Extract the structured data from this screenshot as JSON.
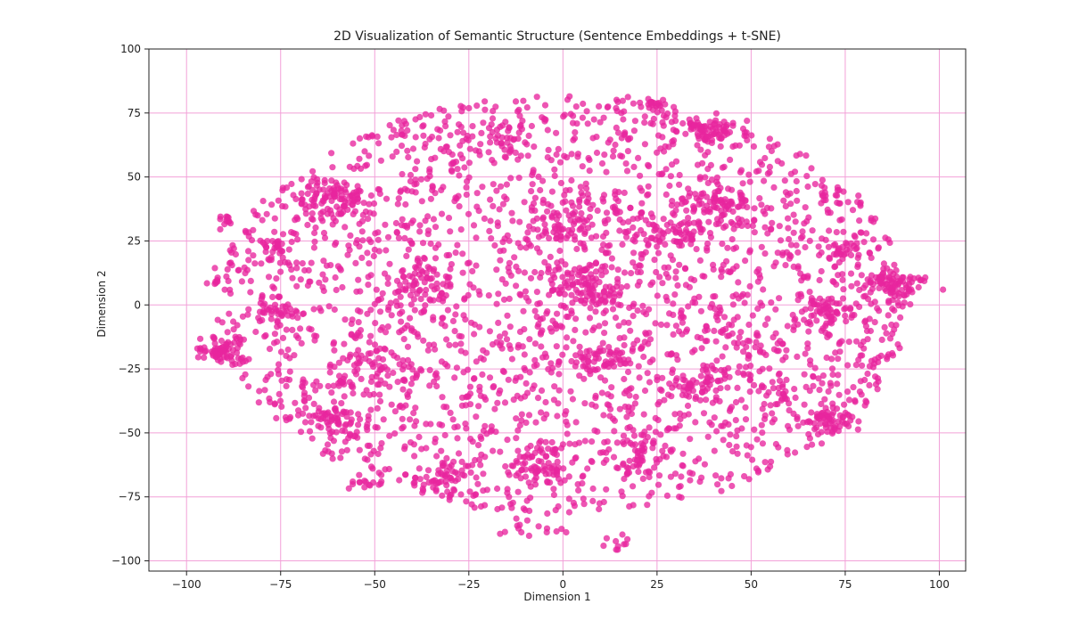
{
  "chart_data": {
    "type": "scatter",
    "title": "2D Visualization of Semantic Structure (Sentence Embeddings + t-SNE)",
    "xlabel": "Dimension 1",
    "ylabel": "Dimension 2",
    "xlim": [
      -110,
      107
    ],
    "ylim": [
      -104,
      100
    ],
    "xticks": [
      -100,
      -75,
      -50,
      -25,
      0,
      25,
      50,
      75,
      100
    ],
    "yticks": [
      -100,
      -75,
      -50,
      -25,
      0,
      25,
      50,
      75,
      100
    ],
    "xtick_labels": [
      "−100",
      "−75",
      "−50",
      "−25",
      "0",
      "25",
      "50",
      "75",
      "100"
    ],
    "ytick_labels": [
      "−100",
      "−75",
      "−50",
      "−25",
      "0",
      "25",
      "50",
      "75",
      "100"
    ],
    "grid": true,
    "grid_color": "#f2a0d8",
    "point_color": "#e8259e",
    "point_opacity": 0.78,
    "clusters": [
      {
        "x": 38,
        "y": 69,
        "sx": 4,
        "sy": 2.5,
        "n": 70
      },
      {
        "x": 88,
        "y": 8,
        "sx": 4,
        "sy": 3.5,
        "n": 90
      },
      {
        "x": -91,
        "y": -18,
        "sx": 3,
        "sy": 3,
        "n": 70
      },
      {
        "x": -62,
        "y": 42,
        "sx": 5,
        "sy": 4,
        "n": 80
      },
      {
        "x": 70,
        "y": -45,
        "sx": 4,
        "sy": 3,
        "n": 55
      },
      {
        "x": -60,
        "y": -45,
        "sx": 3,
        "sy": 3,
        "n": 40
      },
      {
        "x": -5,
        "y": -62,
        "sx": 4,
        "sy": 4,
        "n": 55
      },
      {
        "x": 20,
        "y": -58,
        "sx": 4,
        "sy": 4,
        "n": 45
      },
      {
        "x": -31,
        "y": -68,
        "sx": 4,
        "sy": 3,
        "n": 35
      },
      {
        "x": -52,
        "y": -70,
        "sx": 2,
        "sy": 2,
        "n": 15
      },
      {
        "x": -53,
        "y": -25,
        "sx": 5,
        "sy": 6,
        "n": 60
      },
      {
        "x": -75,
        "y": -3,
        "sx": 3,
        "sy": 3,
        "n": 30
      },
      {
        "x": -77,
        "y": 20,
        "sx": 3,
        "sy": 3,
        "n": 25
      },
      {
        "x": -90,
        "y": 33,
        "sx": 2,
        "sy": 2,
        "n": 12
      },
      {
        "x": -93,
        "y": 8,
        "sx": 2,
        "sy": 3,
        "n": 12
      },
      {
        "x": 68,
        "y": -2,
        "sx": 5,
        "sy": 4,
        "n": 60
      },
      {
        "x": 75,
        "y": 20,
        "sx": 3,
        "sy": 4,
        "n": 30
      },
      {
        "x": 43,
        "y": 38,
        "sx": 5,
        "sy": 5,
        "n": 60
      },
      {
        "x": 30,
        "y": 30,
        "sx": 6,
        "sy": 5,
        "n": 60
      },
      {
        "x": 0,
        "y": 30,
        "sx": 5,
        "sy": 5,
        "n": 50
      },
      {
        "x": -15,
        "y": 65,
        "sx": 4,
        "sy": 3,
        "n": 35
      },
      {
        "x": 5,
        "y": 8,
        "sx": 6,
        "sy": 6,
        "n": 90
      },
      {
        "x": -38,
        "y": 8,
        "sx": 6,
        "sy": 5,
        "n": 60
      },
      {
        "x": 35,
        "y": -30,
        "sx": 5,
        "sy": 4,
        "n": 50
      },
      {
        "x": 10,
        "y": -22,
        "sx": 5,
        "sy": 4,
        "n": 50
      },
      {
        "x": 15,
        "y": -92,
        "sx": 2,
        "sy": 2,
        "n": 10
      },
      {
        "x": -8,
        "y": -88,
        "sx": 4,
        "sy": 3,
        "n": 15
      },
      {
        "x": 55,
        "y": -35,
        "sx": 3,
        "sy": 3,
        "n": 20
      },
      {
        "x": 23,
        "y": 78,
        "sx": 3,
        "sy": 2,
        "n": 18
      },
      {
        "x": 70,
        "y": 45,
        "sx": 2,
        "sy": 2,
        "n": 10
      }
    ],
    "background": {
      "cx": 0,
      "cy": 0,
      "rx": 92,
      "ry": 82,
      "n": 2400
    }
  }
}
